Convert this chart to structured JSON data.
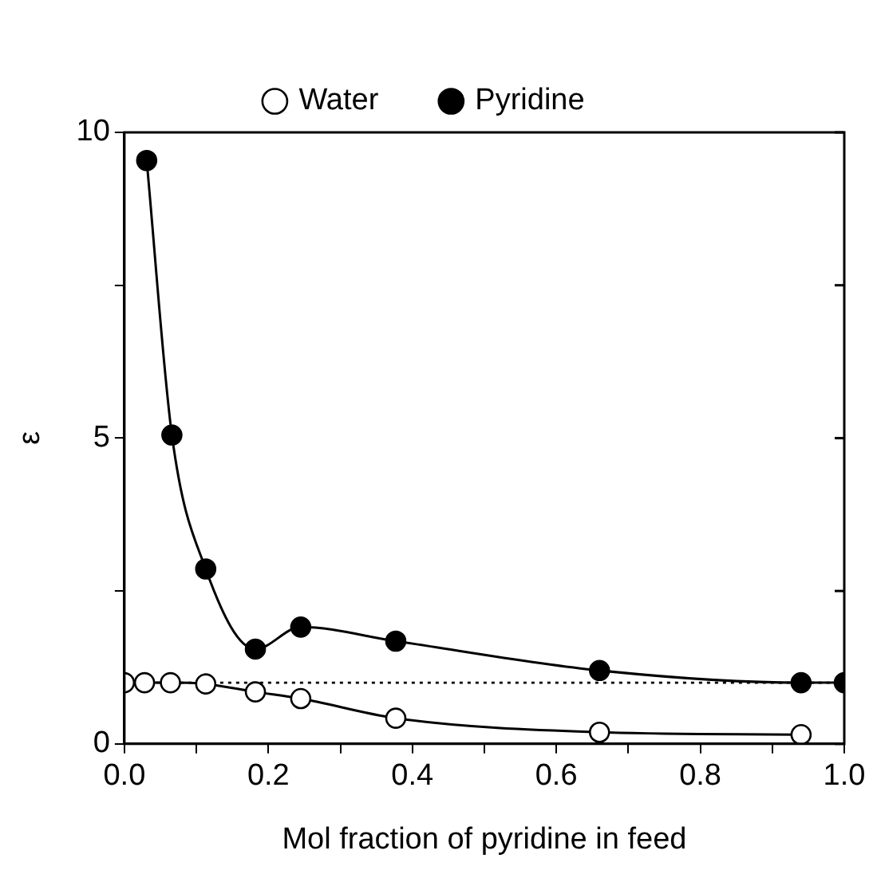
{
  "chart_data": {
    "type": "line",
    "xlabel": "Mol fraction of pyridine in feed",
    "ylabel": "ε",
    "xlim": [
      0,
      1
    ],
    "xticks": [
      {
        "value": 0,
        "label": "0.0"
      },
      {
        "value": 0.1,
        "label": null
      },
      {
        "value": 0.2,
        "label": "0.2"
      },
      {
        "value": 0.3,
        "label": null
      },
      {
        "value": 0.4,
        "label": "0.4"
      },
      {
        "value": 0.5,
        "label": null
      },
      {
        "value": 0.6,
        "label": "0.6"
      },
      {
        "value": 0.7,
        "label": null
      },
      {
        "value": 0.8,
        "label": "0.8"
      },
      {
        "value": 0.9,
        "label": null
      },
      {
        "value": 1,
        "label": "1.0"
      }
    ],
    "ylim": [
      0,
      10
    ],
    "yticks": [
      0,
      {
        "value": 2.5,
        "label": null
      },
      5,
      {
        "value": 7.5,
        "label": null
      },
      10
    ],
    "grid": false,
    "legend": "top",
    "marker": "circle",
    "ref_lines": [
      {
        "axis": "y",
        "value": 1,
        "line_style": "dotted",
        "color": "#000000"
      }
    ],
    "series": [
      {
        "name": "Water",
        "color": "#000000",
        "x": [
          0.0,
          0.028,
          0.064,
          0.113,
          0.182,
          0.245,
          0.377,
          0.66,
          0.94
        ],
        "values": [
          1.0,
          1.0,
          1.0,
          0.98,
          0.85,
          0.74,
          0.42,
          0.19,
          0.15
        ]
      },
      {
        "name": "Pyridine",
        "color": "#000000",
        "x": [
          0.031,
          0.066,
          0.113,
          0.182,
          0.245,
          0.377,
          0.66,
          0.94,
          1.0
        ],
        "values": [
          9.54,
          5.05,
          2.86,
          1.55,
          1.91,
          1.68,
          1.2,
          1.0,
          1.0
        ]
      }
    ]
  }
}
